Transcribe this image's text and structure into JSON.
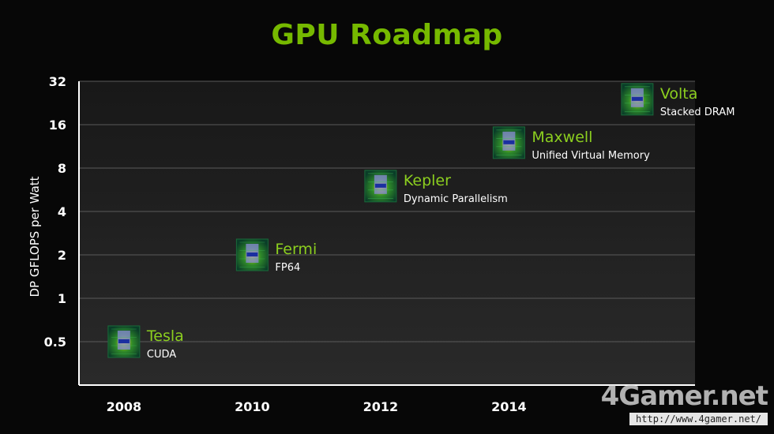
{
  "chart_data": {
    "type": "scatter",
    "title": "GPU Roadmap",
    "xlabel": "",
    "ylabel": "DP GFLOPS per Watt",
    "y_scale": "log2",
    "y_ticks": [
      0.5,
      1,
      2,
      4,
      8,
      16,
      32
    ],
    "y_tick_labels": [
      "0.5",
      "1",
      "2",
      "4",
      "8",
      "16",
      "32"
    ],
    "x_ticks": [
      2008,
      2010,
      2012,
      2014
    ],
    "x_tick_labels": [
      "2008",
      "2010",
      "2012",
      "2014"
    ],
    "xlim": [
      2007.3,
      2016.9
    ],
    "ylim": [
      0.25,
      32
    ],
    "grid": true,
    "points": [
      {
        "x": 2008,
        "y": 0.5,
        "name": "Tesla",
        "feature": "CUDA"
      },
      {
        "x": 2010,
        "y": 2,
        "name": "Fermi",
        "feature": "FP64"
      },
      {
        "x": 2012,
        "y": 6,
        "name": "Kepler",
        "feature": "Dynamic Parallelism"
      },
      {
        "x": 2014,
        "y": 12,
        "name": "Maxwell",
        "feature": "Unified Virtual Memory"
      },
      {
        "x": 2016,
        "y": 24,
        "name": "Volta",
        "feature": "Stacked DRAM"
      }
    ],
    "colors": {
      "title": "#76b900",
      "point_name": "#8ccf1f",
      "feature": "#ffffff",
      "axis": "#ffffff",
      "grid": "#5a5a5a"
    }
  },
  "watermark": {
    "logo": "4Gamer.net",
    "url": "http://www.4gamer.net/"
  }
}
